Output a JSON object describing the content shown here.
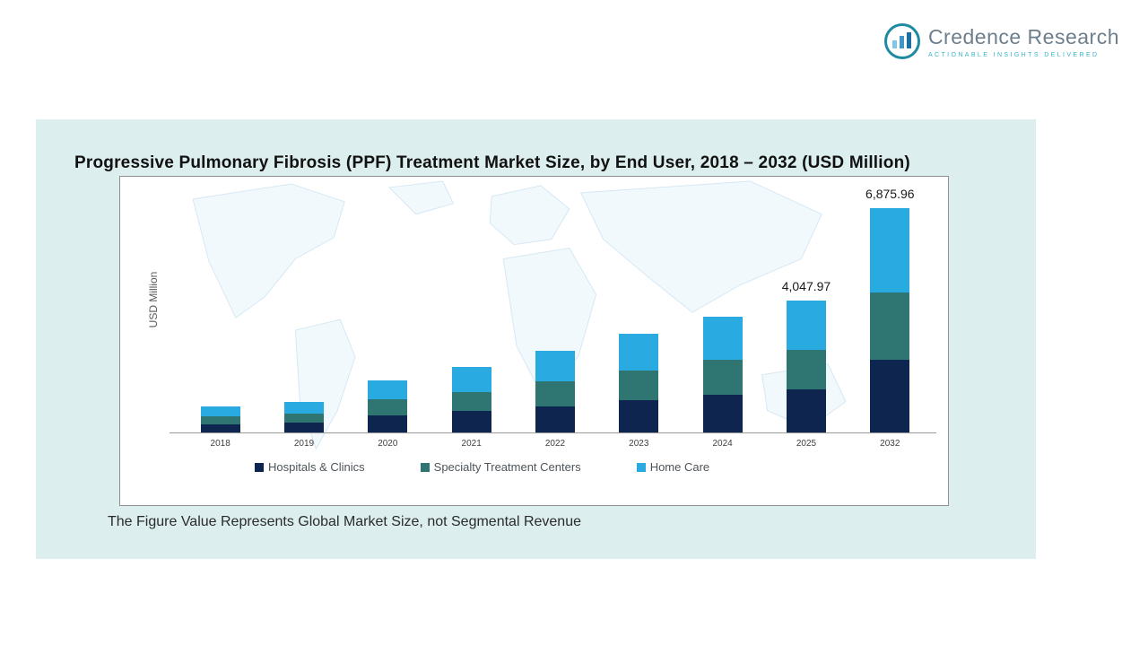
{
  "logo": {
    "name": "Credence Research",
    "tagline": "Actionable Insights Delivered"
  },
  "chart": {
    "title": "Progressive Pulmonary Fibrosis (PPF) Treatment Market Size, by End User, 2018 – 2032 (USD Million)",
    "ylabel": "USD Million",
    "footnote": "The Figure Value Represents Global Market Size, not Segmental Revenue"
  },
  "chart_data": {
    "type": "bar",
    "stacked": true,
    "title": "Progressive Pulmonary Fibrosis (PPF) Treatment Market Size, by End User, 2018 – 2032 (USD Million)",
    "xlabel": "",
    "ylabel": "USD Million",
    "ylim": [
      0,
      7000
    ],
    "grid": false,
    "legend_position": "bottom",
    "categories": [
      "2018",
      "2019",
      "2020",
      "2021",
      "2022",
      "2023",
      "2024",
      "2025",
      "2032"
    ],
    "series": [
      {
        "name": "Hospitals & Clinics",
        "color": "#0e2550",
        "values": [
          255,
          300,
          520,
          650,
          810,
          985,
          1160,
          1320,
          2240
        ]
      },
      {
        "name": "Specialty Treatment Centers",
        "color": "#2f7672",
        "values": [
          240,
          280,
          490,
          600,
          745,
          905,
          1060,
          1210,
          2060
        ]
      },
      {
        "name": "Home Care",
        "color": "#29abe2",
        "values": [
          295,
          345,
          600,
          755,
          940,
          1135,
          1340,
          1517.97,
          2575.96
        ]
      }
    ],
    "totals": [
      790,
      925,
      1610,
      2005,
      2495,
      3025,
      3560,
      4047.97,
      6875.96
    ],
    "data_labels": [
      {
        "category": "2025",
        "text": "4,047.97"
      },
      {
        "category": "2032",
        "text": "6,875.96"
      }
    ]
  }
}
